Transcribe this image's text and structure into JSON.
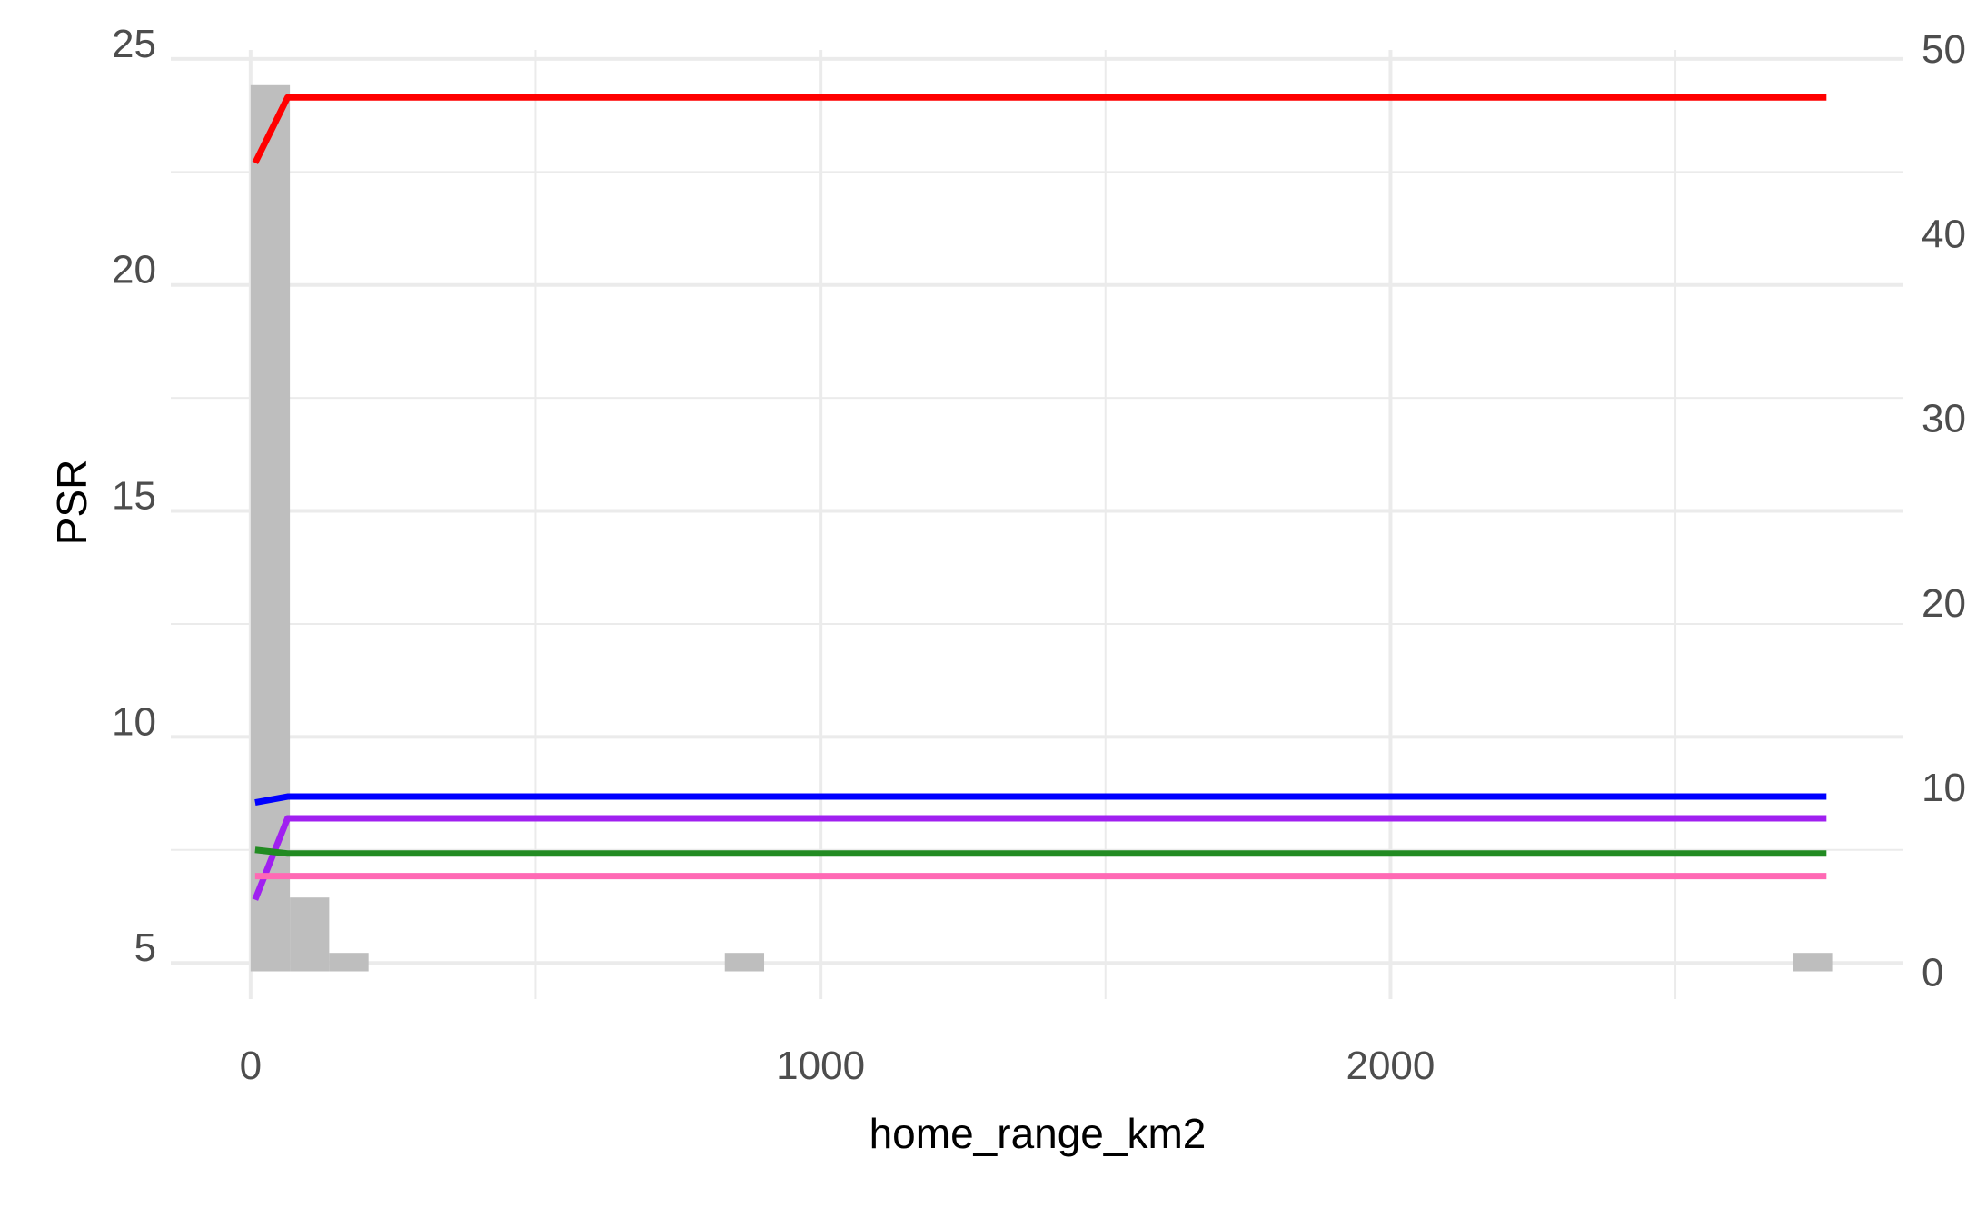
{
  "chart_data": {
    "type": "line",
    "title": "",
    "xlabel": "home_range_km2",
    "ylabel": "PSR",
    "xlim": [
      -140,
      2900
    ],
    "ylim": [
      4.2,
      25.4
    ],
    "y2lim": [
      -1.5,
      50.4
    ],
    "x_ticks": [
      0,
      1000,
      2000
    ],
    "x_tick_labels": [
      "0",
      "1000",
      "2000"
    ],
    "y_ticks": [
      5,
      10,
      15,
      20,
      25
    ],
    "y_tick_labels": [
      "5",
      "10",
      "15",
      "20",
      "25"
    ],
    "y2_ticks": [
      0,
      10,
      20,
      30,
      40,
      50
    ],
    "y2_tick_labels": [
      "0",
      "10",
      "20",
      "30",
      "40",
      "50"
    ],
    "grid": true,
    "legend": "none",
    "histogram": {
      "axis": "secondary",
      "color": "#bebebe",
      "bins": [
        {
          "x0": 0,
          "x1": 69,
          "count": 48
        },
        {
          "x0": 69,
          "x1": 138,
          "count": 4
        },
        {
          "x0": 138,
          "x1": 207,
          "count": 1
        },
        {
          "x0": 832,
          "x1": 901,
          "count": 1
        },
        {
          "x0": 2706,
          "x1": 2775,
          "count": 1
        }
      ]
    },
    "series": [
      {
        "color": "#ff0000",
        "x": [
          8,
          65,
          2765
        ],
        "y": [
          22.7,
          24.15,
          24.15
        ]
      },
      {
        "color": "#0000ff",
        "x": [
          8,
          65,
          2765
        ],
        "y": [
          8.55,
          8.68,
          8.68
        ]
      },
      {
        "color": "#a020f0",
        "x": [
          8,
          65,
          2765
        ],
        "y": [
          6.4,
          8.2,
          8.2
        ]
      },
      {
        "color": "#228b22",
        "x": [
          8,
          65,
          2765
        ],
        "y": [
          7.5,
          7.42,
          7.42
        ]
      },
      {
        "color": "#ff69b4",
        "x": [
          8,
          65,
          2765
        ],
        "y": [
          6.92,
          6.92,
          6.92
        ]
      }
    ]
  }
}
